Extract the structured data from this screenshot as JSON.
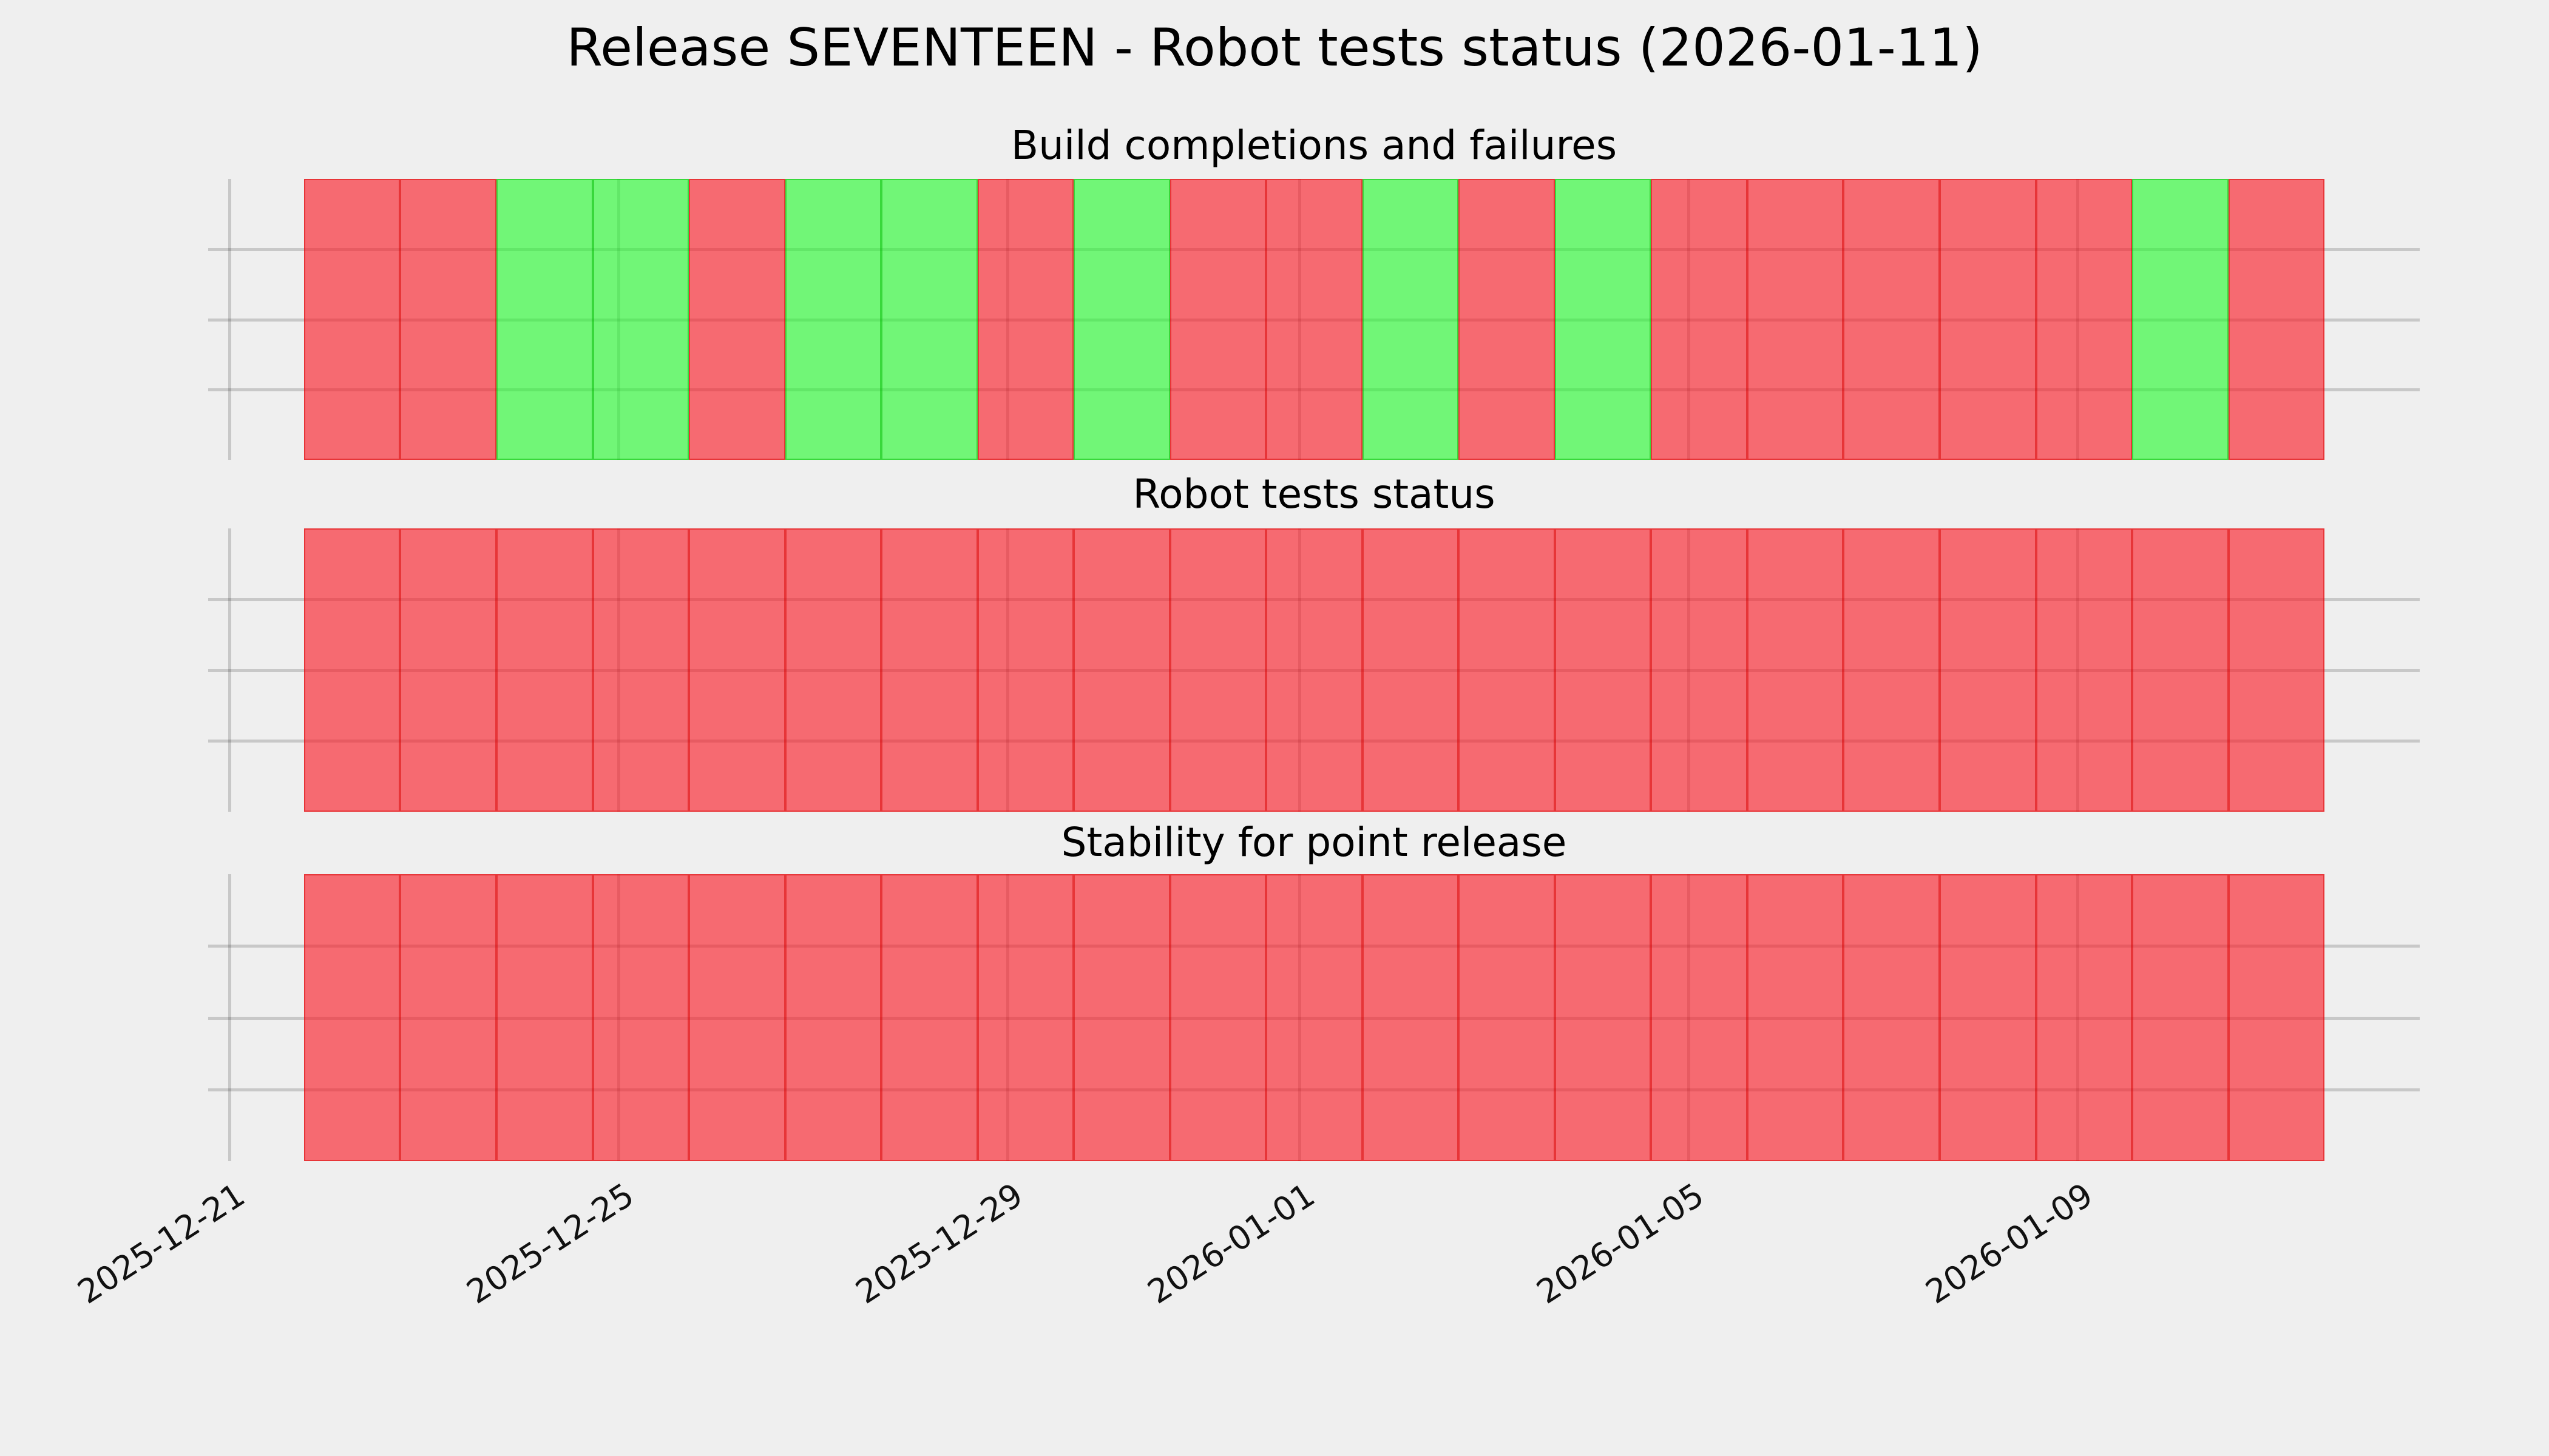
{
  "figure_title": "Release SEVENTEEN - Robot tests status (2026-01-11)",
  "colors": {
    "background": "#EFEFEF",
    "grid": "rgba(0,0,0,0.16)",
    "pass_fill": "rgba(35,250,45,0.62)",
    "fail_fill": "rgba(250,25,35,0.62)",
    "pass_edge": "rgba(0,185,0,0.5)",
    "fail_edge": "rgba(215,0,0,0.5)",
    "pass_hex_rendered": "#77F57C",
    "fail_hex_rendered": "#F57377",
    "text": "#000000"
  },
  "x_tick_labels": [
    "2025-12-21",
    "2025-12-25",
    "2025-12-29",
    "2026-01-01",
    "2026-01-05",
    "2026-01-09"
  ],
  "chart_data": [
    {
      "type": "bar",
      "title": "Build completions and failures",
      "x": [
        "2025-12-22",
        "2025-12-23",
        "2025-12-24",
        "2025-12-25",
        "2025-12-26",
        "2025-12-27",
        "2025-12-28",
        "2025-12-29",
        "2025-12-30",
        "2025-12-31",
        "2026-01-01",
        "2026-01-02",
        "2026-01-03",
        "2026-01-04",
        "2026-01-05",
        "2026-01-06",
        "2026-01-07",
        "2026-01-08",
        "2026-01-09",
        "2026-01-10",
        "2026-01-11"
      ],
      "statuses": [
        "fail",
        "fail",
        "pass",
        "pass",
        "fail",
        "pass",
        "pass",
        "fail",
        "pass",
        "fail",
        "fail",
        "pass",
        "fail",
        "pass",
        "fail",
        "fail",
        "fail",
        "fail",
        "fail",
        "pass",
        "fail"
      ],
      "values": [
        1,
        1,
        1,
        1,
        1,
        1,
        1,
        1,
        1,
        1,
        1,
        1,
        1,
        1,
        1,
        1,
        1,
        1,
        1,
        1,
        1
      ],
      "ylim": [
        0,
        1
      ],
      "xlabel": "",
      "ylabel": "",
      "grid": true,
      "legend": false,
      "status_color_map": {
        "pass": "green",
        "fail": "red"
      }
    },
    {
      "type": "bar",
      "title": "Robot tests status",
      "x": [
        "2025-12-22",
        "2025-12-23",
        "2025-12-24",
        "2025-12-25",
        "2025-12-26",
        "2025-12-27",
        "2025-12-28",
        "2025-12-29",
        "2025-12-30",
        "2025-12-31",
        "2026-01-01",
        "2026-01-02",
        "2026-01-03",
        "2026-01-04",
        "2026-01-05",
        "2026-01-06",
        "2026-01-07",
        "2026-01-08",
        "2026-01-09",
        "2026-01-10",
        "2026-01-11"
      ],
      "statuses": [
        "fail",
        "fail",
        "fail",
        "fail",
        "fail",
        "fail",
        "fail",
        "fail",
        "fail",
        "fail",
        "fail",
        "fail",
        "fail",
        "fail",
        "fail",
        "fail",
        "fail",
        "fail",
        "fail",
        "fail",
        "fail"
      ],
      "values": [
        1,
        1,
        1,
        1,
        1,
        1,
        1,
        1,
        1,
        1,
        1,
        1,
        1,
        1,
        1,
        1,
        1,
        1,
        1,
        1,
        1
      ],
      "ylim": [
        0,
        1
      ],
      "xlabel": "",
      "ylabel": "",
      "grid": true,
      "legend": false,
      "status_color_map": {
        "pass": "green",
        "fail": "red"
      }
    },
    {
      "type": "bar",
      "title": "Stability for point release",
      "x": [
        "2025-12-22",
        "2025-12-23",
        "2025-12-24",
        "2025-12-25",
        "2025-12-26",
        "2025-12-27",
        "2025-12-28",
        "2025-12-29",
        "2025-12-30",
        "2025-12-31",
        "2026-01-01",
        "2026-01-02",
        "2026-01-03",
        "2026-01-04",
        "2026-01-05",
        "2026-01-06",
        "2026-01-07",
        "2026-01-08",
        "2026-01-09",
        "2026-01-10",
        "2026-01-11"
      ],
      "statuses": [
        "fail",
        "fail",
        "fail",
        "fail",
        "fail",
        "fail",
        "fail",
        "fail",
        "fail",
        "fail",
        "fail",
        "fail",
        "fail",
        "fail",
        "fail",
        "fail",
        "fail",
        "fail",
        "fail",
        "fail",
        "fail"
      ],
      "values": [
        1,
        1,
        1,
        1,
        1,
        1,
        1,
        1,
        1,
        1,
        1,
        1,
        1,
        1,
        1,
        1,
        1,
        1,
        1,
        1,
        1
      ],
      "ylim": [
        0,
        1
      ],
      "xlabel": "",
      "ylabel": "",
      "grid": true,
      "legend": false,
      "status_color_map": {
        "pass": "green",
        "fail": "red"
      }
    }
  ]
}
